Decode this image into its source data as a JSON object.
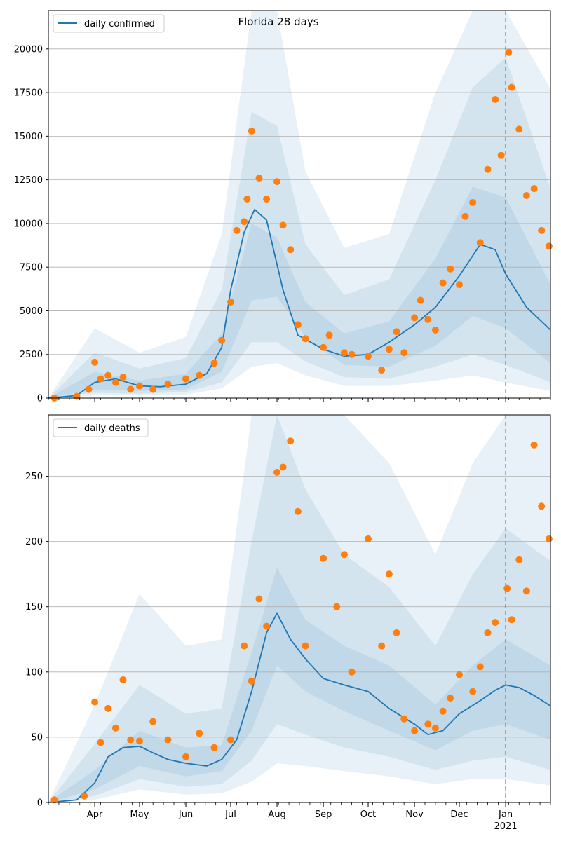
{
  "chart_data": [
    {
      "type": "line",
      "title": "Florida 28 days",
      "xlabel": "",
      "ylabel": "",
      "ylim": [
        0,
        22200
      ],
      "yticks": [
        0,
        2500,
        5000,
        7500,
        10000,
        12500,
        15000,
        17500,
        20000
      ],
      "grid": "horizontal",
      "legend": "top-left",
      "markers": {
        "dashed_vertical_line": "2021-01-01"
      },
      "colors": {
        "line": "#1f77b4",
        "points": "#ff7f0e",
        "band": "#1f77b4",
        "vline": "#1f77b4",
        "grid": "#b0b0b0"
      },
      "series": [
        {
          "name": "daily confirmed",
          "kind": "line",
          "x": [
            "2020-03-01",
            "2020-03-20",
            "2020-04-01",
            "2020-04-15",
            "2020-05-01",
            "2020-05-15",
            "2020-06-01",
            "2020-06-15",
            "2020-06-25",
            "2020-07-01",
            "2020-07-10",
            "2020-07-17",
            "2020-07-25",
            "2020-08-05",
            "2020-08-15",
            "2020-09-01",
            "2020-09-15",
            "2020-10-01",
            "2020-10-15",
            "2020-11-01",
            "2020-11-15",
            "2020-12-01",
            "2020-12-15",
            "2020-12-25",
            "2021-01-01",
            "2021-01-15",
            "2021-01-31"
          ],
          "values": [
            0,
            150,
            900,
            1100,
            700,
            650,
            800,
            1400,
            2900,
            6200,
            9500,
            10800,
            10200,
            6200,
            3600,
            2800,
            2400,
            2500,
            3200,
            4200,
            5200,
            7000,
            8800,
            8500,
            7100,
            5200,
            3900
          ]
        },
        {
          "name": "",
          "kind": "points",
          "x": [
            "2020-03-05",
            "2020-03-20",
            "2020-03-28",
            "2020-04-01",
            "2020-04-05",
            "2020-04-10",
            "2020-04-15",
            "2020-04-20",
            "2020-04-25",
            "2020-05-01",
            "2020-05-10",
            "2020-05-20",
            "2020-06-01",
            "2020-06-10",
            "2020-06-20",
            "2020-06-25",
            "2020-07-01",
            "2020-07-05",
            "2020-07-10",
            "2020-07-12",
            "2020-07-15",
            "2020-07-20",
            "2020-07-25",
            "2020-08-01",
            "2020-08-05",
            "2020-08-10",
            "2020-08-15",
            "2020-08-20",
            "2020-09-01",
            "2020-09-05",
            "2020-09-15",
            "2020-09-20",
            "2020-10-01",
            "2020-10-10",
            "2020-10-15",
            "2020-10-20",
            "2020-10-25",
            "2020-11-01",
            "2020-11-05",
            "2020-11-10",
            "2020-11-15",
            "2020-11-20",
            "2020-11-25",
            "2020-12-01",
            "2020-12-05",
            "2020-12-10",
            "2020-12-15",
            "2020-12-20",
            "2020-12-25",
            "2020-12-29",
            "2021-01-03",
            "2021-01-05",
            "2021-01-10",
            "2021-01-15",
            "2021-01-20",
            "2021-01-25",
            "2021-01-30"
          ],
          "values": [
            0,
            100,
            500,
            2050,
            1100,
            1300,
            900,
            1200,
            500,
            700,
            500,
            800,
            1100,
            1300,
            2000,
            3300,
            5500,
            9600,
            10100,
            11400,
            15300,
            12600,
            11400,
            12400,
            9900,
            8500,
            4200,
            3400,
            2900,
            3600,
            2600,
            2500,
            2400,
            1600,
            2800,
            3800,
            2600,
            4600,
            5600,
            4500,
            3900,
            6600,
            7400,
            6500,
            10400,
            11200,
            8900,
            13100,
            17100,
            13900,
            19800,
            17800,
            15400,
            11600,
            12000,
            9600,
            8700
          ]
        }
      ],
      "bands": [
        {
          "name": "",
          "x": [
            "2020-03-01",
            "2020-04-01",
            "2020-05-01",
            "2020-06-01",
            "2020-06-25",
            "2020-07-15",
            "2020-08-01",
            "2020-08-20",
            "2020-09-15",
            "2020-10-15",
            "2020-11-15",
            "2020-12-10",
            "2021-01-01",
            "2021-01-31"
          ],
          "lower": [
            0,
            500,
            400,
            500,
            1500,
            5600,
            5800,
            3500,
            1900,
            1800,
            3000,
            4700,
            4000,
            2000
          ],
          "upper": [
            0,
            1500,
            1000,
            1400,
            3700,
            10000,
            9200,
            5500,
            3700,
            4400,
            8000,
            12100,
            11500,
            6500
          ]
        },
        {
          "name": "",
          "x": [
            "2020-03-01",
            "2020-04-01",
            "2020-05-01",
            "2020-06-01",
            "2020-06-25",
            "2020-07-15",
            "2020-08-01",
            "2020-08-20",
            "2020-09-15",
            "2020-10-15",
            "2020-11-15",
            "2020-12-10",
            "2021-01-01",
            "2021-01-31"
          ],
          "lower": [
            0,
            300,
            250,
            350,
            900,
            3200,
            3200,
            2100,
            1200,
            1100,
            1800,
            2500,
            1900,
            900
          ],
          "upper": [
            0,
            2600,
            1700,
            2300,
            6200,
            16400,
            15600,
            8800,
            5900,
            6800,
            12500,
            17800,
            19500,
            12000
          ]
        },
        {
          "name": "",
          "x": [
            "2020-03-01",
            "2020-04-01",
            "2020-05-01",
            "2020-06-01",
            "2020-06-25",
            "2020-07-15",
            "2020-08-01",
            "2020-08-20",
            "2020-09-15",
            "2020-10-15",
            "2020-11-15",
            "2020-12-10",
            "2021-01-01",
            "2021-01-31"
          ],
          "lower": [
            0,
            150,
            150,
            200,
            550,
            1800,
            2000,
            1300,
            700,
            700,
            1000,
            1300,
            900,
            400
          ],
          "upper": [
            0,
            4000,
            2600,
            3500,
            9400,
            22200,
            22200,
            13000,
            8600,
            9400,
            17500,
            22200,
            22200,
            17700
          ]
        }
      ],
      "x_ticks": [
        "Apr",
        "May",
        "Jun",
        "Jul",
        "Aug",
        "Sep",
        "Oct",
        "Nov",
        "Dec",
        "Jan"
      ],
      "x_subtitle": ""
    },
    {
      "type": "line",
      "title": "",
      "xlabel": "",
      "ylabel": "",
      "ylim": [
        0,
        297
      ],
      "yticks": [
        0,
        50,
        100,
        150,
        200,
        250
      ],
      "grid": "horizontal",
      "legend": "top-left",
      "markers": {
        "dashed_vertical_line": "2021-01-01"
      },
      "colors": {
        "line": "#1f77b4",
        "points": "#ff7f0e",
        "band": "#1f77b4",
        "vline": "#1f77b4",
        "grid": "#b0b0b0"
      },
      "series": [
        {
          "name": "daily deaths",
          "kind": "line",
          "x": [
            "2020-03-01",
            "2020-03-20",
            "2020-04-01",
            "2020-04-10",
            "2020-04-20",
            "2020-05-01",
            "2020-05-10",
            "2020-05-20",
            "2020-06-01",
            "2020-06-15",
            "2020-06-25",
            "2020-07-05",
            "2020-07-15",
            "2020-07-25",
            "2020-08-01",
            "2020-08-10",
            "2020-08-20",
            "2020-09-01",
            "2020-09-15",
            "2020-10-01",
            "2020-10-15",
            "2020-11-01",
            "2020-11-10",
            "2020-11-20",
            "2020-12-01",
            "2020-12-15",
            "2020-12-25",
            "2021-01-01",
            "2021-01-10",
            "2021-01-20",
            "2021-01-31"
          ],
          "values": [
            0,
            2,
            15,
            35,
            42,
            43,
            38,
            33,
            30,
            28,
            33,
            48,
            85,
            130,
            145,
            125,
            110,
            95,
            90,
            85,
            72,
            60,
            52,
            55,
            68,
            78,
            86,
            90,
            88,
            82,
            74
          ]
        },
        {
          "name": "",
          "kind": "points",
          "x": [
            "2020-03-05",
            "2020-03-25",
            "2020-04-01",
            "2020-04-05",
            "2020-04-10",
            "2020-04-15",
            "2020-04-20",
            "2020-04-25",
            "2020-05-01",
            "2020-05-10",
            "2020-05-20",
            "2020-06-01",
            "2020-06-10",
            "2020-06-20",
            "2020-07-01",
            "2020-07-10",
            "2020-07-15",
            "2020-07-20",
            "2020-07-25",
            "2020-08-01",
            "2020-08-05",
            "2020-08-10",
            "2020-08-15",
            "2020-08-20",
            "2020-09-01",
            "2020-09-10",
            "2020-09-15",
            "2020-09-20",
            "2020-10-01",
            "2020-10-10",
            "2020-10-15",
            "2020-10-20",
            "2020-10-25",
            "2020-11-01",
            "2020-11-10",
            "2020-11-15",
            "2020-11-20",
            "2020-11-25",
            "2020-12-01",
            "2020-12-10",
            "2020-12-15",
            "2020-12-20",
            "2020-12-25",
            "2021-01-02",
            "2021-01-05",
            "2021-01-10",
            "2021-01-15",
            "2021-01-20",
            "2021-01-25",
            "2021-01-30"
          ],
          "values": [
            2,
            5,
            77,
            46,
            72,
            57,
            94,
            48,
            47,
            62,
            48,
            35,
            53,
            42,
            48,
            120,
            93,
            156,
            135,
            253,
            257,
            277,
            223,
            120,
            187,
            150,
            190,
            100,
            202,
            120,
            175,
            130,
            64,
            55,
            60,
            57,
            70,
            80,
            98,
            85,
            104,
            130,
            138,
            164,
            140,
            186,
            162,
            274,
            227,
            202
          ]
        }
      ],
      "bands": [
        {
          "name": "",
          "x": [
            "2020-03-01",
            "2020-04-01",
            "2020-05-01",
            "2020-06-01",
            "2020-06-25",
            "2020-07-15",
            "2020-08-01",
            "2020-08-20",
            "2020-09-15",
            "2020-10-15",
            "2020-11-15",
            "2020-12-10",
            "2021-01-01",
            "2021-01-31"
          ],
          "lower": [
            0,
            10,
            28,
            20,
            24,
            55,
            105,
            85,
            70,
            55,
            40,
            55,
            60,
            48
          ],
          "upper": [
            0,
            25,
            55,
            42,
            44,
            115,
            180,
            140,
            120,
            105,
            75,
            105,
            125,
            105
          ]
        },
        {
          "name": "",
          "x": [
            "2020-03-01",
            "2020-04-01",
            "2020-05-01",
            "2020-06-01",
            "2020-06-25",
            "2020-07-15",
            "2020-08-01",
            "2020-08-20",
            "2020-09-15",
            "2020-10-15",
            "2020-11-15",
            "2020-12-10",
            "2021-01-01",
            "2021-01-31"
          ],
          "lower": [
            0,
            5,
            18,
            12,
            14,
            32,
            60,
            52,
            42,
            35,
            25,
            32,
            35,
            25
          ],
          "upper": [
            0,
            45,
            90,
            68,
            72,
            200,
            297,
            240,
            190,
            165,
            120,
            175,
            210,
            185
          ]
        },
        {
          "name": "",
          "x": [
            "2020-03-01",
            "2020-04-01",
            "2020-05-01",
            "2020-06-01",
            "2020-06-25",
            "2020-07-15",
            "2020-08-01",
            "2020-08-20",
            "2020-09-15",
            "2020-10-15",
            "2020-11-15",
            "2020-12-10",
            "2021-01-01",
            "2021-01-31"
          ],
          "lower": [
            0,
            2,
            10,
            6,
            7,
            16,
            30,
            28,
            24,
            20,
            14,
            18,
            18,
            13
          ],
          "upper": [
            0,
            75,
            160,
            120,
            125,
            297,
            297,
            297,
            297,
            260,
            190,
            260,
            297,
            297
          ]
        }
      ],
      "x_ticks": [
        "Apr",
        "May",
        "Jun",
        "Jul",
        "Aug",
        "Sep",
        "Oct",
        "Nov",
        "Dec",
        "Jan"
      ],
      "x_subtitle": "2021"
    }
  ]
}
